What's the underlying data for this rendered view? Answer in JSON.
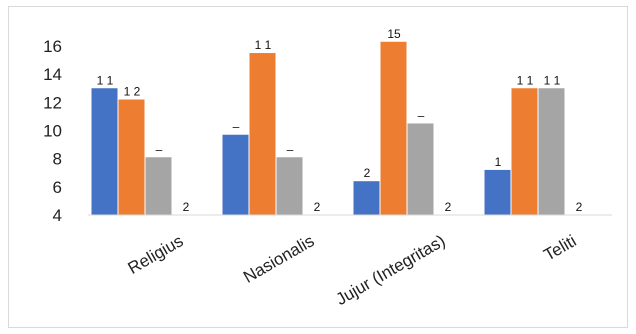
{
  "chart_data": {
    "type": "bar",
    "title": "",
    "xlabel": "",
    "ylabel": "",
    "categories": [
      "Religius",
      "Nasionalis",
      "Jujur (Integritas)",
      "Teliti"
    ],
    "series": [
      {
        "color": "#4472C4",
        "values": [
          13,
          9.7,
          6.4,
          7.2
        ]
      },
      {
        "color": "#ED7D31",
        "values": [
          12.2,
          15.5,
          16.3,
          13
        ]
      },
      {
        "color": "#A5A5A5",
        "values": [
          8.1,
          8.1,
          10.5,
          13
        ]
      },
      {
        "color": "#FFC000",
        "values": [
          4,
          4,
          4,
          4
        ]
      }
    ],
    "ylim": [
      4,
      16
    ],
    "yticks": [
      "4",
      "6",
      "8",
      "10",
      "12",
      "14",
      "16"
    ],
    "grid": false,
    "legend": "none",
    "data_labels": [
      [
        "1 1",
        "1 2",
        "–",
        "2"
      ],
      [
        "–",
        "1 1",
        "–",
        "2"
      ],
      [
        "2",
        "15",
        "–",
        "2"
      ],
      [
        "1",
        "1 1",
        "1 1",
        "2"
      ]
    ]
  }
}
